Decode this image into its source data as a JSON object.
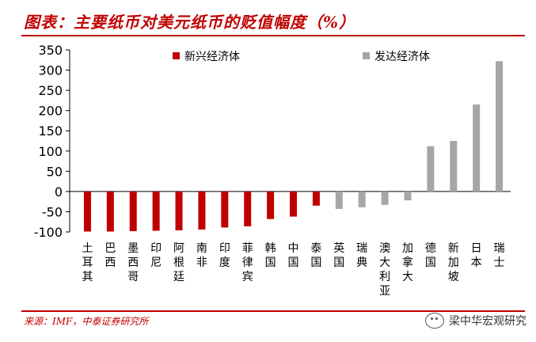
{
  "header": {
    "title": "图表：主要纸币对美元纸币的贬值幅度（%）"
  },
  "footer": {
    "source": "来源：IMF，中泰证券研究所",
    "watermark": "梁中华宏观研究"
  },
  "colors": {
    "emerging": "#c00000",
    "developed": "#a6a6a6",
    "brand": "#c00000"
  },
  "chart_data": {
    "type": "bar",
    "title": "主要纸币对美元纸币的贬值幅度（%）",
    "xlabel": "",
    "ylabel": "",
    "ylim": [
      -100,
      350
    ],
    "yticks": [
      350,
      300,
      250,
      200,
      150,
      100,
      50,
      0,
      -50,
      -100
    ],
    "categories": [
      "土耳其",
      "巴西",
      "墨西哥",
      "印尼",
      "阿根廷",
      "南非",
      "印度",
      "菲律宾",
      "韩国",
      "中国",
      "泰国",
      "英国",
      "瑞典",
      "澳大利亚",
      "加拿大",
      "德国",
      "新加坡",
      "日本",
      "瑞士"
    ],
    "series": [
      {
        "name": "新兴经济体",
        "color": "#c00000",
        "values": [
          -99,
          -99,
          -98,
          -97,
          -96,
          -94,
          -89,
          -86,
          -68,
          -62,
          -35,
          null,
          null,
          null,
          null,
          null,
          null,
          null,
          null
        ]
      },
      {
        "name": "发达经济体",
        "color": "#a6a6a6",
        "values": [
          null,
          null,
          null,
          null,
          null,
          null,
          null,
          null,
          null,
          null,
          null,
          -43,
          -39,
          -33,
          -22,
          112,
          125,
          215,
          322
        ]
      }
    ],
    "legend": "top"
  }
}
